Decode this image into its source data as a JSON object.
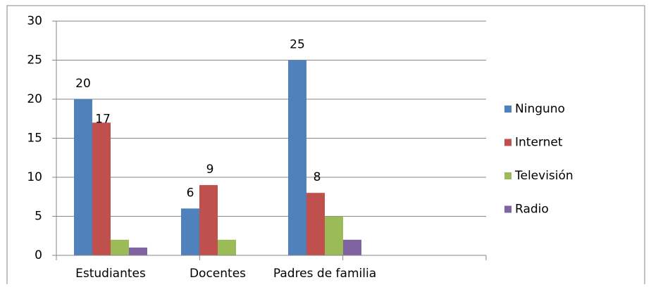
{
  "chart_data": {
    "type": "bar",
    "categories": [
      "Estudiantes",
      "Docentes",
      "Padres de familia"
    ],
    "series": [
      {
        "name": "Ninguno",
        "color": "#4f81bd",
        "values": [
          20,
          6,
          25
        ],
        "data_labels": true
      },
      {
        "name": "Internet",
        "color": "#c0504d",
        "values": [
          17,
          9,
          8
        ],
        "data_labels": true
      },
      {
        "name": "Televisión",
        "color": "#9bbb59",
        "values": [
          2,
          2,
          5
        ],
        "data_labels": false
      },
      {
        "name": "Radio",
        "color": "#8064a2",
        "values": [
          1,
          0,
          2
        ],
        "data_labels": false
      }
    ],
    "ylim": [
      0,
      30
    ],
    "yticks": [
      0,
      5,
      10,
      15,
      20,
      25,
      30
    ],
    "grid": true,
    "legend": "right"
  }
}
